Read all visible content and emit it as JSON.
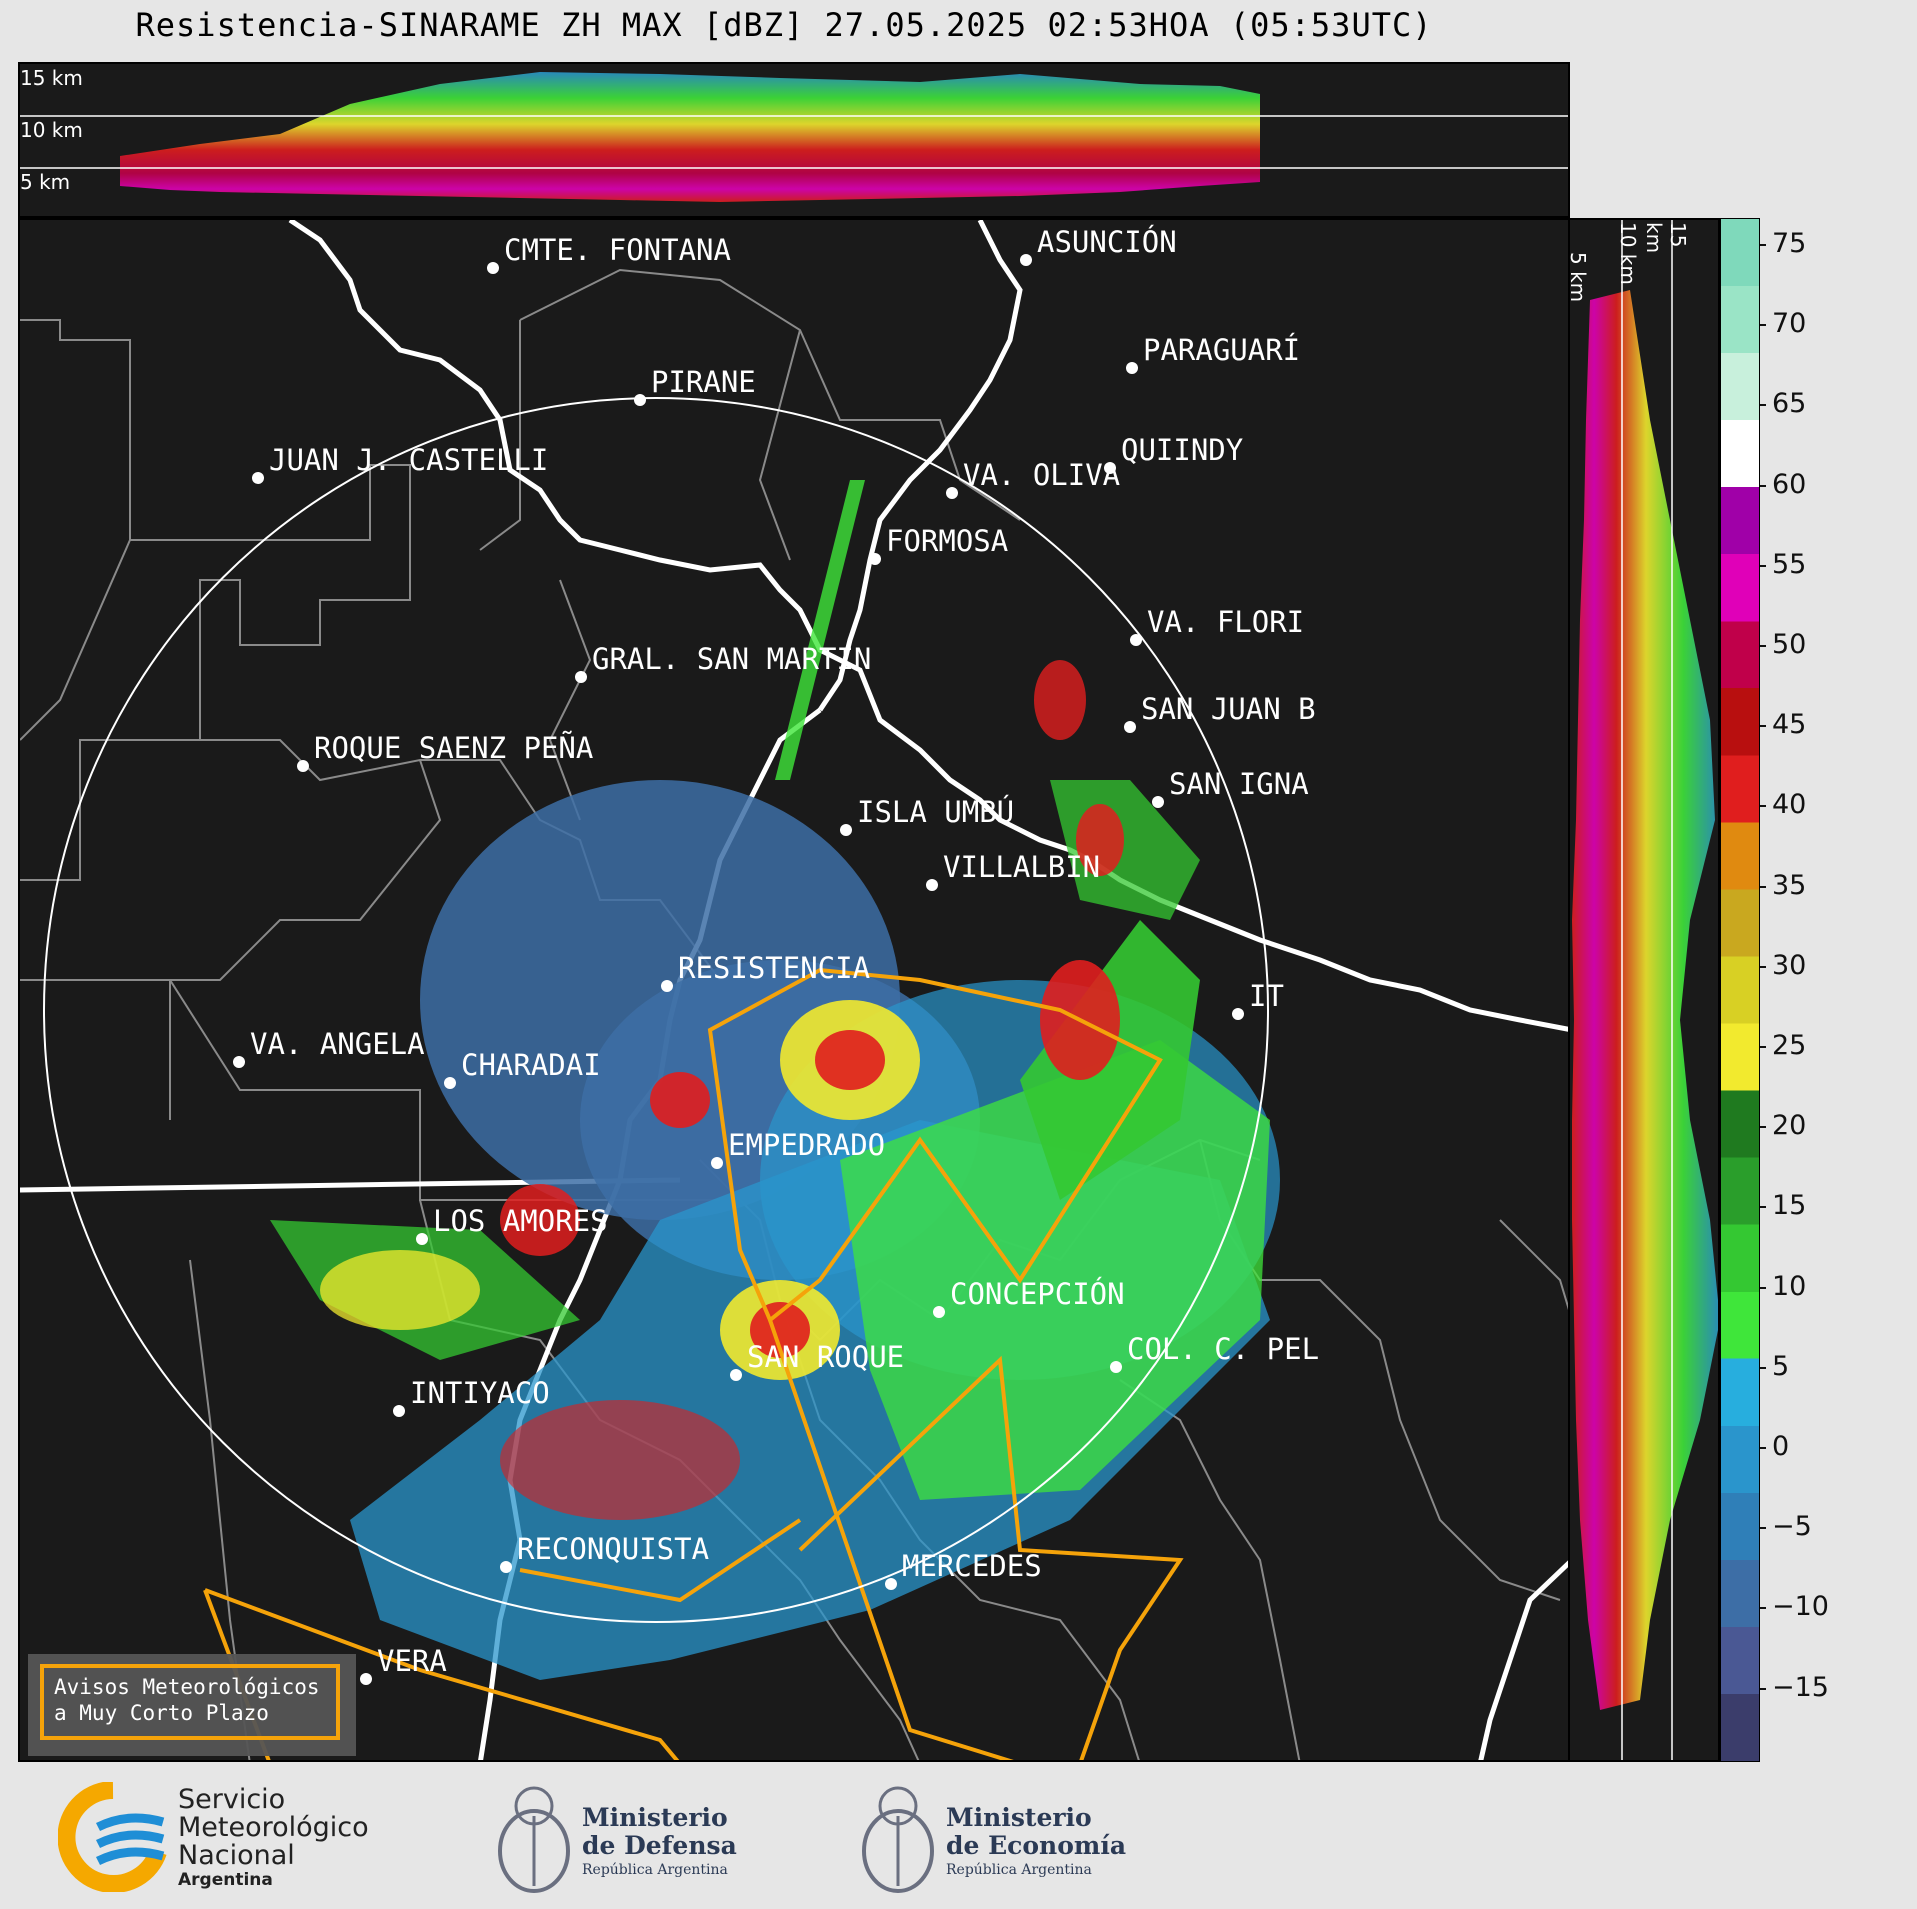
{
  "title": "Resistencia-SINARAME ZH MAX [dBZ] 27.05.2025 02:53HOA (05:53UTC)",
  "top_panel": {
    "labels": [
      "15 km",
      "10 km",
      "5 km"
    ]
  },
  "side_panel": {
    "labels": [
      "5 km",
      "10 km",
      "15 km"
    ]
  },
  "colorbar": {
    "ticks": [
      "75",
      "70",
      "65",
      "60",
      "55",
      "50",
      "45",
      "40",
      "35",
      "30",
      "25",
      "20",
      "15",
      "10",
      "5",
      "0",
      "−5",
      "−10",
      "−15"
    ],
    "colors": [
      "#3b3d6b",
      "#4a5894",
      "#3d6ea6",
      "#2f7fb8",
      "#2a95cc",
      "#27aede",
      "#3fe63a",
      "#34c832",
      "#2a9e2b",
      "#1f7a1f",
      "#f2ea2e",
      "#d8d024",
      "#c9a81f",
      "#e08a10",
      "#e01e1e",
      "#b80f0f",
      "#c0004a",
      "#e000b8",
      "#a000a8",
      "#ffffff",
      "#c8f0dc",
      "#9ae4c6",
      "#7fd9bb"
    ]
  },
  "cities": [
    {
      "name": "CMTE. FONTANA"
    },
    {
      "name": "ASUNCIÓN"
    },
    {
      "name": "PIRANE"
    },
    {
      "name": "PARAGUARÍ"
    },
    {
      "name": "JUAN J. CASTELLI"
    },
    {
      "name": "VA. OLIVA"
    },
    {
      "name": "QUIINDY"
    },
    {
      "name": "FORMOSA"
    },
    {
      "name": "VA. FLORI"
    },
    {
      "name": "GRAL. SAN MARTIN"
    },
    {
      "name": "SAN JUAN B"
    },
    {
      "name": "ROQUE SAENZ PEÑA"
    },
    {
      "name": "SAN IGNA"
    },
    {
      "name": "ISLA UMBÚ"
    },
    {
      "name": "VILLALBIN"
    },
    {
      "name": "RESISTENCIA"
    },
    {
      "name": "IT"
    },
    {
      "name": "VA. ANGELA"
    },
    {
      "name": "CHARADAI"
    },
    {
      "name": "EMPEDRADO"
    },
    {
      "name": "LOS AMORES"
    },
    {
      "name": "CONCEPCIÓN"
    },
    {
      "name": "SAN ROQUE"
    },
    {
      "name": "COL. C. PEL"
    },
    {
      "name": "INTIYACO"
    },
    {
      "name": "RECONQUISTA"
    },
    {
      "name": "MERCEDES"
    },
    {
      "name": "VERA"
    }
  ],
  "legend": {
    "line1": "Avisos Meteorológicos",
    "line2": "a Muy Corto Plazo"
  },
  "footer": {
    "smn": {
      "line1": "Servicio",
      "line2": "Meteorológico",
      "line3": "Nacional",
      "line4": "Argentina"
    },
    "defensa": {
      "line1": "Ministerio",
      "line2": "de Defensa",
      "line3": "República Argentina"
    },
    "economia": {
      "line1": "Ministerio",
      "line2": "de Economía",
      "line3": "República Argentina"
    }
  }
}
